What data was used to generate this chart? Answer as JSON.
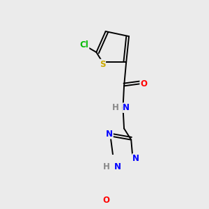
{
  "bg_color": "#ebebeb",
  "bond_color": "#000000",
  "atom_colors": {
    "N": "#0000ff",
    "O": "#ff0000",
    "S": "#ccaa00",
    "Cl": "#00bb00",
    "H": "#888888"
  },
  "figsize": [
    3.0,
    3.0
  ],
  "dpi": 100
}
